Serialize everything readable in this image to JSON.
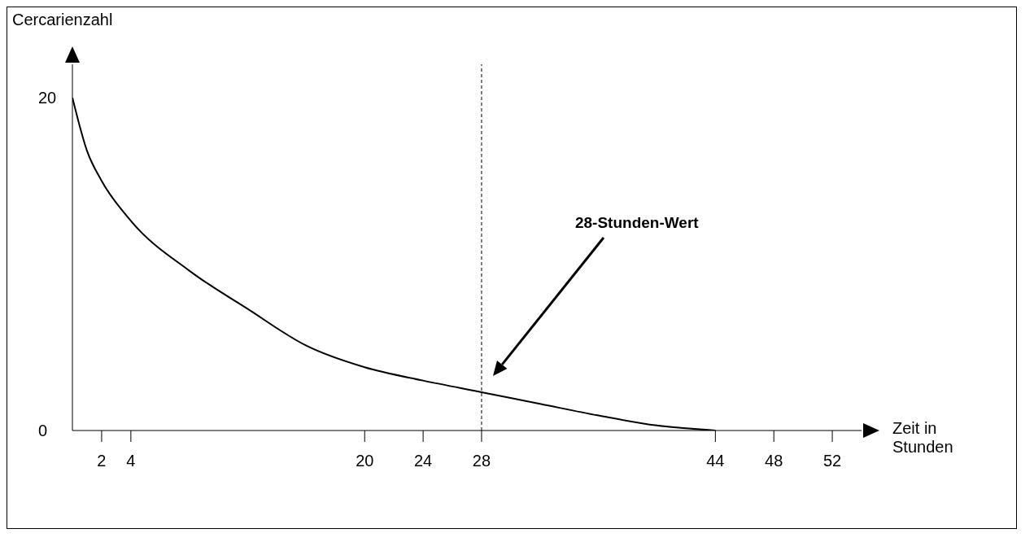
{
  "chart_data": {
    "type": "line",
    "xlabel": "Zeit in Stunden",
    "ylabel": "Cercarienzahl",
    "x": [
      0,
      1,
      2,
      4,
      8,
      12,
      16,
      20,
      24,
      28,
      32,
      36,
      40,
      44
    ],
    "series": [
      {
        "color": "#000000",
        "values": [
          20,
          16.8,
          15,
          12.6,
          9.6,
          7.3,
          5.1,
          3.8,
          3.0,
          2.3,
          1.6,
          0.9,
          0.3,
          0
        ]
      }
    ],
    "xlim": [
      0,
      54
    ],
    "xticks": [
      2,
      4,
      20,
      24,
      28,
      44,
      48,
      52
    ],
    "ylim": [
      0,
      22
    ],
    "yticks": [
      0,
      20
    ],
    "ref_lines": [
      {
        "axis": "x",
        "value": 28,
        "color": "#000000",
        "line_style": "dashed"
      }
    ],
    "annotations": [
      "28-Stunden-Wert"
    ],
    "grid": false,
    "marker": "none",
    "line_style": "solid"
  }
}
